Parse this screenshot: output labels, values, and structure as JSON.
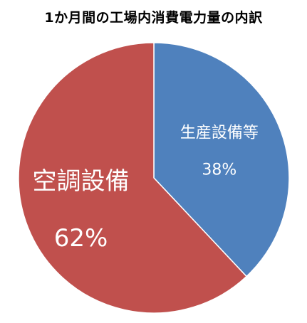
{
  "chart_data": {
    "type": "pie",
    "title": "1か月間の工場内消費電力量の内訳",
    "slices": [
      {
        "label": "生産設備等",
        "value": 38,
        "value_label": "38%",
        "color": "#4f81bd"
      },
      {
        "label": "空調設備",
        "value": 62,
        "value_label": "62%",
        "color": "#c0504d"
      }
    ],
    "start_position": "12 o'clock",
    "direction": "clockwise",
    "legend": "none"
  }
}
